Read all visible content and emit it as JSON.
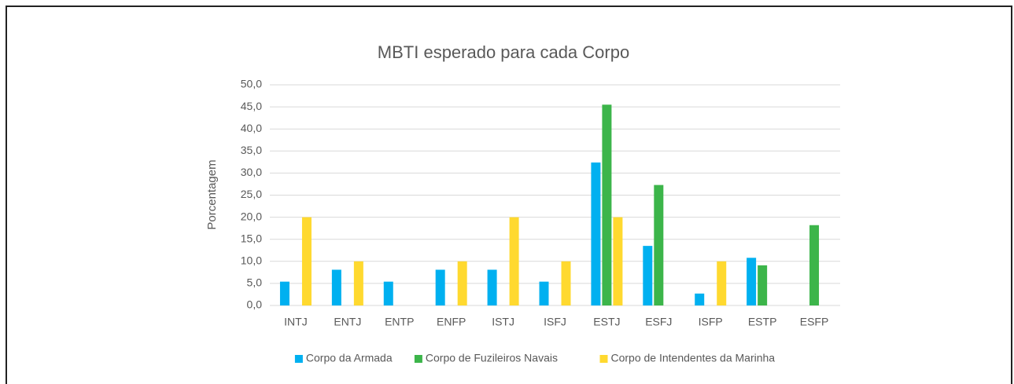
{
  "chart_data": {
    "type": "bar",
    "title": "MBTI esperado para cada Corpo",
    "y_label": "Porcentagem",
    "categories": [
      "INTJ",
      "ENTJ",
      "ENTP",
      "ENFP",
      "ISTJ",
      "ISFJ",
      "ESTJ",
      "ESFJ",
      "ISFP",
      "ESTP",
      "ESFP"
    ],
    "series": [
      {
        "name": "Corpo da Armada",
        "color": "#00b0f0",
        "values": [
          5.4,
          8.1,
          5.4,
          8.1,
          8.1,
          5.4,
          32.4,
          13.5,
          2.7,
          10.8,
          0
        ]
      },
      {
        "name": "Corpo de Fuzileiros Navais",
        "color": "#3cb54a",
        "values": [
          0,
          0,
          0,
          0,
          0,
          0,
          45.5,
          27.3,
          0,
          9.1,
          18.2
        ]
      },
      {
        "name": "Corpo de Intendentes da Marinha",
        "color": "#ffd92f",
        "values": [
          20,
          10,
          0,
          10,
          20,
          10,
          20,
          0,
          10,
          0,
          0
        ]
      }
    ],
    "ylim": [
      0,
      50
    ],
    "yticks": [
      {
        "value": 0,
        "label": "0,0"
      },
      {
        "value": 5,
        "label": "5,0"
      },
      {
        "value": 10,
        "label": "10,0"
      },
      {
        "value": 15,
        "label": "15,0"
      },
      {
        "value": 20,
        "label": "20,0"
      },
      {
        "value": 25,
        "label": "25,0"
      },
      {
        "value": 30,
        "label": "30,0"
      },
      {
        "value": 35,
        "label": "35,0"
      },
      {
        "value": 40,
        "label": "40,0"
      },
      {
        "value": 45,
        "label": "45,0"
      },
      {
        "value": 50,
        "label": "50,0"
      }
    ],
    "grid": true,
    "legend": "bottom"
  }
}
